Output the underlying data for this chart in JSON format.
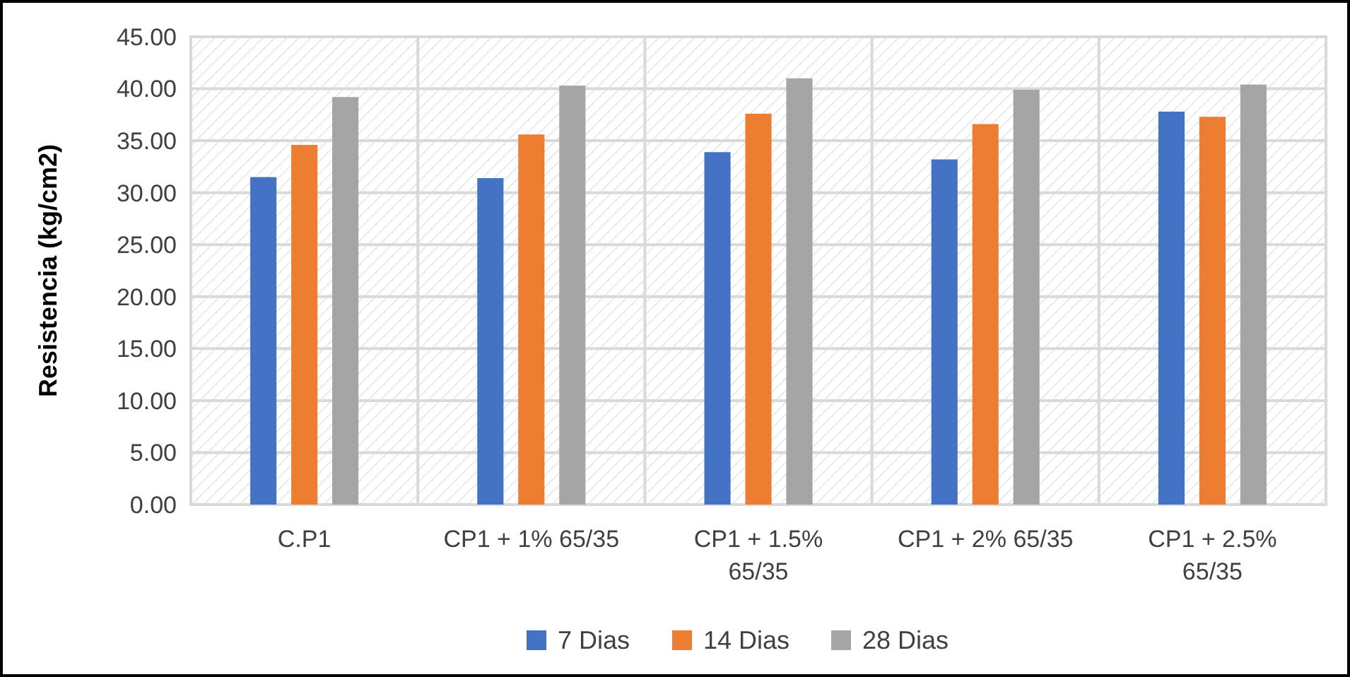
{
  "chart_data": {
    "type": "bar",
    "ylabel": "Resistencia (kg/cm2)",
    "categories": [
      "C.P1",
      "CP1 + 1% 65/35",
      "CP1 + 1.5% 65/35",
      "CP1 + 2% 65/35",
      "CP1 + 2.5% 65/35"
    ],
    "series": [
      {
        "name": "7 Dias",
        "color": "#4472c4",
        "values": [
          31.5,
          31.4,
          33.9,
          33.2,
          37.8
        ]
      },
      {
        "name": "14 Dias",
        "color": "#ed7d31",
        "values": [
          34.6,
          35.6,
          37.6,
          36.6,
          37.3
        ]
      },
      {
        "name": "28 Dias",
        "color": "#a5a5a5",
        "values": [
          39.2,
          40.3,
          41.0,
          39.9,
          40.4
        ]
      }
    ],
    "ylim": [
      0,
      45
    ],
    "yticks": [
      {
        "value": 0,
        "label": "0.00"
      },
      {
        "value": 5,
        "label": "5.00"
      },
      {
        "value": 10,
        "label": "10.00"
      },
      {
        "value": 15,
        "label": "15.00"
      },
      {
        "value": 20,
        "label": "20.00"
      },
      {
        "value": 25,
        "label": "25.00"
      },
      {
        "value": 30,
        "label": "30.00"
      },
      {
        "value": 35,
        "label": "35.00"
      },
      {
        "value": 40,
        "label": "40.00"
      },
      {
        "value": 45,
        "label": "45.00"
      }
    ],
    "grid": true,
    "legend": "bottom"
  }
}
